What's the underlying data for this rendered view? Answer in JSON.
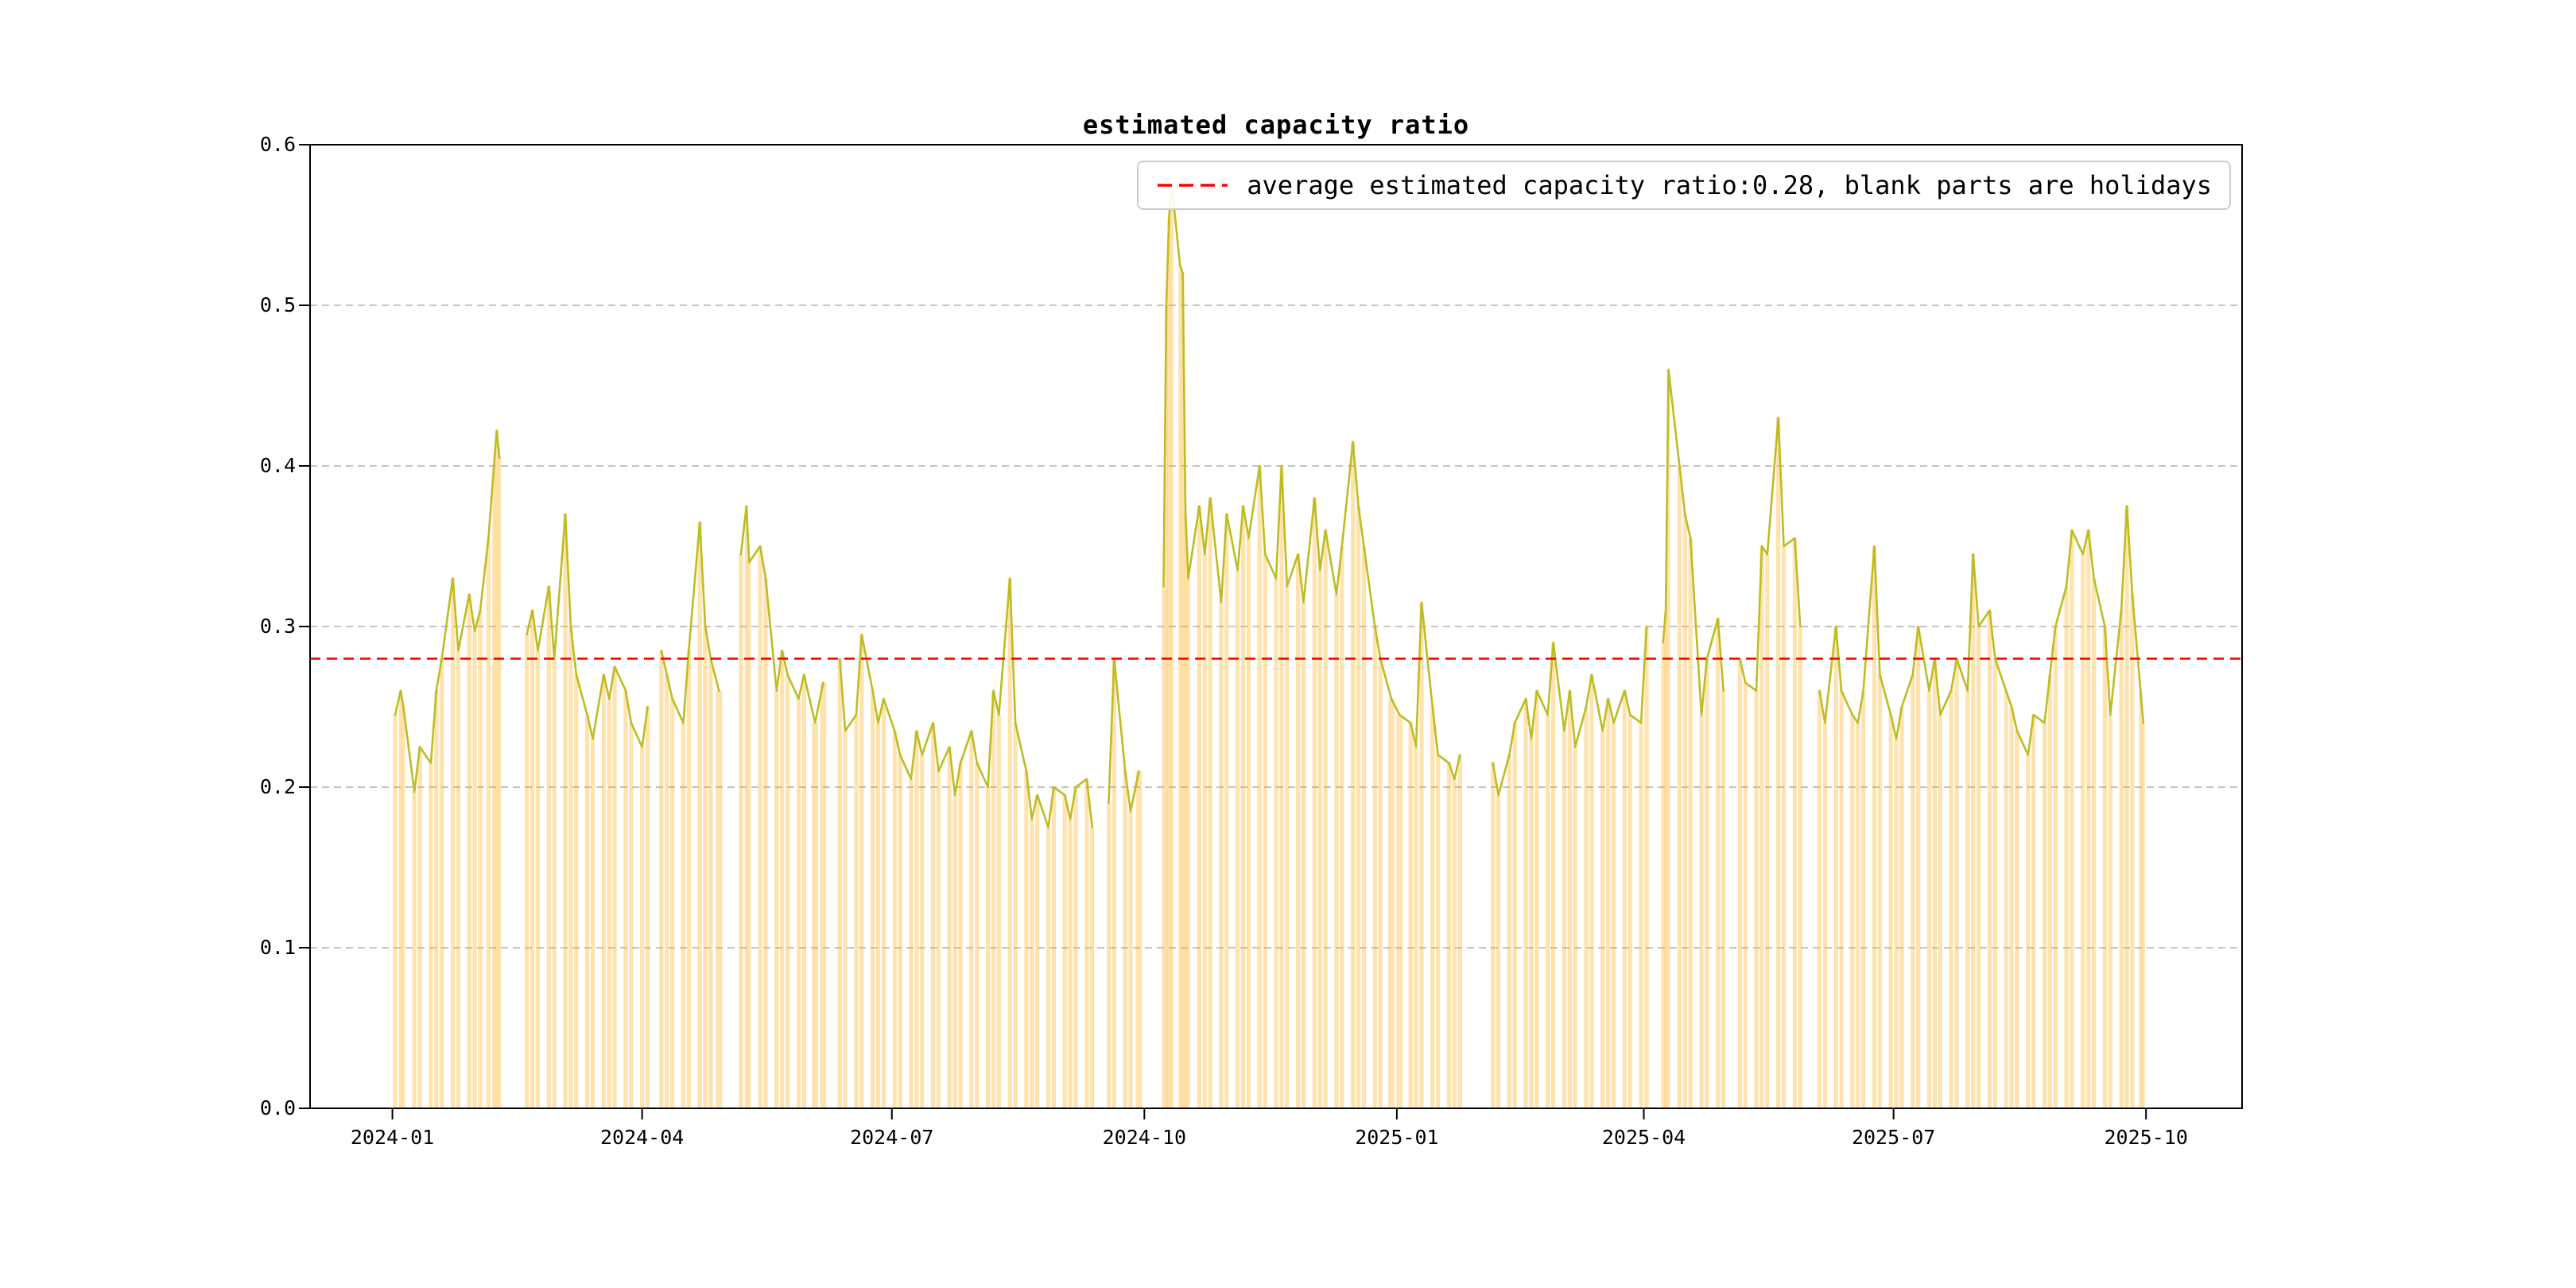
{
  "figure": {
    "title": "estimated capacity ratio"
  },
  "chart_data": {
    "type": "line",
    "title": "estimated capacity ratio",
    "ylim": [
      0.0,
      0.6
    ],
    "ytick_labels": [
      "0.0",
      "0.1",
      "0.2",
      "0.3",
      "0.4",
      "0.5",
      "0.6"
    ],
    "xlim": [
      "2023-12-02",
      "2025-11-05"
    ],
    "xticks": [
      "2024-01-01",
      "2024-04-01",
      "2024-07-01",
      "2024-10-01",
      "2025-01-01",
      "2025-04-01",
      "2025-07-01",
      "2025-10-01"
    ],
    "xtick_labels": [
      "2024-01",
      "2024-04",
      "2024-07",
      "2024-10",
      "2025-01",
      "2025-04",
      "2025-07",
      "2025-10"
    ],
    "grid": true,
    "average_line": {
      "value": 0.28,
      "color": "#ff0000",
      "style": "dashed"
    },
    "legend": {
      "position": "upper right",
      "entries": [
        {
          "label": "average estimated capacity ratio:0.28, blank parts are holidays",
          "color": "#ff0000",
          "style": "dashed"
        }
      ]
    },
    "colors": {
      "line": "#bcbd22",
      "bar": "#ffa500",
      "bar_alpha": 0.32,
      "grid": "#b0b0b0",
      "average": "#ff0000",
      "spine": "#000000"
    },
    "notes": "blank parts are holidays",
    "series": [
      {
        "name": "estimated capacity ratio",
        "render": "line-with-bars",
        "points": [
          [
            "2024-01-02",
            0.245
          ],
          [
            "2024-01-04",
            0.26
          ],
          [
            "2024-01-05",
            0.25
          ],
          [
            "2024-01-09",
            0.197
          ],
          [
            "2024-01-11",
            0.225
          ],
          [
            "2024-01-15",
            0.215
          ],
          [
            "2024-01-17",
            0.26
          ],
          [
            "2024-01-19",
            0.28
          ],
          [
            "2024-01-23",
            0.33
          ],
          [
            "2024-01-25",
            0.285
          ],
          [
            "2024-01-29",
            0.32
          ],
          [
            "2024-01-31",
            0.297
          ],
          [
            "2024-02-02",
            0.31
          ],
          [
            "2024-02-05",
            0.355
          ],
          [
            "2024-02-07",
            0.4
          ],
          [
            "2024-02-08",
            0.422
          ],
          [
            "2024-02-09",
            0.405
          ],
          [
            "2024-02-13",
            null
          ],
          [
            "2024-02-19",
            0.295
          ],
          [
            "2024-02-21",
            0.31
          ],
          [
            "2024-02-23",
            0.285
          ],
          [
            "2024-02-27",
            0.325
          ],
          [
            "2024-02-29",
            0.28
          ],
          [
            "2024-03-04",
            0.37
          ],
          [
            "2024-03-06",
            0.3
          ],
          [
            "2024-03-08",
            0.27
          ],
          [
            "2024-03-12",
            0.245
          ],
          [
            "2024-03-14",
            0.23
          ],
          [
            "2024-03-18",
            0.27
          ],
          [
            "2024-03-20",
            0.255
          ],
          [
            "2024-03-22",
            0.275
          ],
          [
            "2024-03-26",
            0.26
          ],
          [
            "2024-03-28",
            0.24
          ],
          [
            "2024-04-01",
            0.225
          ],
          [
            "2024-04-03",
            0.25
          ],
          [
            "2024-04-05",
            null
          ],
          [
            "2024-04-08",
            0.285
          ],
          [
            "2024-04-10",
            0.27
          ],
          [
            "2024-04-12",
            0.255
          ],
          [
            "2024-04-16",
            0.24
          ],
          [
            "2024-04-18",
            0.285
          ],
          [
            "2024-04-22",
            0.365
          ],
          [
            "2024-04-24",
            0.3
          ],
          [
            "2024-04-26",
            0.28
          ],
          [
            "2024-04-29",
            0.26
          ],
          [
            "2024-05-02",
            null
          ],
          [
            "2024-05-07",
            0.345
          ],
          [
            "2024-05-09",
            0.375
          ],
          [
            "2024-05-10",
            0.34
          ],
          [
            "2024-05-14",
            0.35
          ],
          [
            "2024-05-16",
            0.33
          ],
          [
            "2024-05-20",
            0.26
          ],
          [
            "2024-05-22",
            0.285
          ],
          [
            "2024-05-24",
            0.27
          ],
          [
            "2024-05-28",
            0.255
          ],
          [
            "2024-05-30",
            0.27
          ],
          [
            "2024-06-03",
            0.24
          ],
          [
            "2024-06-06",
            0.265
          ],
          [
            "2024-06-09",
            null
          ],
          [
            "2024-06-12",
            0.28
          ],
          [
            "2024-06-14",
            0.235
          ],
          [
            "2024-06-18",
            0.245
          ],
          [
            "2024-06-20",
            0.295
          ],
          [
            "2024-06-24",
            0.26
          ],
          [
            "2024-06-26",
            0.24
          ],
          [
            "2024-06-28",
            0.255
          ],
          [
            "2024-07-02",
            0.235
          ],
          [
            "2024-07-04",
            0.22
          ],
          [
            "2024-07-08",
            0.205
          ],
          [
            "2024-07-10",
            0.235
          ],
          [
            "2024-07-12",
            0.22
          ],
          [
            "2024-07-16",
            0.24
          ],
          [
            "2024-07-18",
            0.21
          ],
          [
            "2024-07-22",
            0.225
          ],
          [
            "2024-07-24",
            0.195
          ],
          [
            "2024-07-26",
            0.215
          ],
          [
            "2024-07-30",
            0.235
          ],
          [
            "2024-08-01",
            0.215
          ],
          [
            "2024-08-05",
            0.2
          ],
          [
            "2024-08-07",
            0.26
          ],
          [
            "2024-08-09",
            0.245
          ],
          [
            "2024-08-13",
            0.33
          ],
          [
            "2024-08-15",
            0.24
          ],
          [
            "2024-08-19",
            0.21
          ],
          [
            "2024-08-21",
            0.18
          ],
          [
            "2024-08-23",
            0.195
          ],
          [
            "2024-08-27",
            0.175
          ],
          [
            "2024-08-29",
            0.2
          ],
          [
            "2024-09-02",
            0.195
          ],
          [
            "2024-09-04",
            0.18
          ],
          [
            "2024-09-06",
            0.2
          ],
          [
            "2024-09-10",
            0.205
          ],
          [
            "2024-09-12",
            0.175
          ],
          [
            "2024-09-16",
            null
          ],
          [
            "2024-09-18",
            0.19
          ],
          [
            "2024-09-20",
            0.28
          ],
          [
            "2024-09-24",
            0.21
          ],
          [
            "2024-09-26",
            0.185
          ],
          [
            "2024-09-29",
            0.21
          ],
          [
            "2024-10-02",
            null
          ],
          [
            "2024-10-08",
            0.325
          ],
          [
            "2024-10-09",
            0.5
          ],
          [
            "2024-10-10",
            0.555
          ],
          [
            "2024-10-11",
            0.575
          ],
          [
            "2024-10-14",
            0.525
          ],
          [
            "2024-10-15",
            0.52
          ],
          [
            "2024-10-16",
            0.37
          ],
          [
            "2024-10-17",
            0.33
          ],
          [
            "2024-10-21",
            0.375
          ],
          [
            "2024-10-23",
            0.345
          ],
          [
            "2024-10-25",
            0.38
          ],
          [
            "2024-10-29",
            0.315
          ],
          [
            "2024-10-31",
            0.37
          ],
          [
            "2024-11-04",
            0.335
          ],
          [
            "2024-11-06",
            0.375
          ],
          [
            "2024-11-08",
            0.355
          ],
          [
            "2024-11-12",
            0.4
          ],
          [
            "2024-11-14",
            0.345
          ],
          [
            "2024-11-18",
            0.33
          ],
          [
            "2024-11-20",
            0.4
          ],
          [
            "2024-11-22",
            0.325
          ],
          [
            "2024-11-26",
            0.345
          ],
          [
            "2024-11-28",
            0.315
          ],
          [
            "2024-12-02",
            0.38
          ],
          [
            "2024-12-04",
            0.335
          ],
          [
            "2024-12-06",
            0.36
          ],
          [
            "2024-12-10",
            0.32
          ],
          [
            "2024-12-12",
            0.35
          ],
          [
            "2024-12-16",
            0.415
          ],
          [
            "2024-12-18",
            0.375
          ],
          [
            "2024-12-20",
            0.35
          ],
          [
            "2024-12-24",
            0.3
          ],
          [
            "2024-12-26",
            0.28
          ],
          [
            "2024-12-30",
            0.255
          ],
          [
            "2025-01-02",
            0.245
          ],
          [
            "2025-01-06",
            0.24
          ],
          [
            "2025-01-08",
            0.225
          ],
          [
            "2025-01-10",
            0.315
          ],
          [
            "2025-01-14",
            0.25
          ],
          [
            "2025-01-16",
            0.22
          ],
          [
            "2025-01-20",
            0.215
          ],
          [
            "2025-01-22",
            0.205
          ],
          [
            "2025-01-24",
            0.22
          ],
          [
            "2025-01-28",
            null
          ],
          [
            "2025-02-05",
            0.215
          ],
          [
            "2025-02-07",
            0.195
          ],
          [
            "2025-02-11",
            0.22
          ],
          [
            "2025-02-13",
            0.24
          ],
          [
            "2025-02-17",
            0.255
          ],
          [
            "2025-02-19",
            0.23
          ],
          [
            "2025-02-21",
            0.26
          ],
          [
            "2025-02-25",
            0.245
          ],
          [
            "2025-02-27",
            0.29
          ],
          [
            "2025-03-03",
            0.235
          ],
          [
            "2025-03-05",
            0.26
          ],
          [
            "2025-03-07",
            0.225
          ],
          [
            "2025-03-11",
            0.25
          ],
          [
            "2025-03-13",
            0.27
          ],
          [
            "2025-03-17",
            0.235
          ],
          [
            "2025-03-19",
            0.255
          ],
          [
            "2025-03-21",
            0.24
          ],
          [
            "2025-03-25",
            0.26
          ],
          [
            "2025-03-27",
            0.245
          ],
          [
            "2025-03-31",
            0.24
          ],
          [
            "2025-04-02",
            0.3
          ],
          [
            "2025-04-04",
            null
          ],
          [
            "2025-04-08",
            0.29
          ],
          [
            "2025-04-09",
            0.31
          ],
          [
            "2025-04-10",
            0.46
          ],
          [
            "2025-04-14",
            0.4
          ],
          [
            "2025-04-16",
            0.37
          ],
          [
            "2025-04-18",
            0.355
          ],
          [
            "2025-04-22",
            0.245
          ],
          [
            "2025-04-24",
            0.28
          ],
          [
            "2025-04-28",
            0.305
          ],
          [
            "2025-04-30",
            0.26
          ],
          [
            "2025-05-02",
            null
          ],
          [
            "2025-05-06",
            0.28
          ],
          [
            "2025-05-08",
            0.265
          ],
          [
            "2025-05-12",
            0.26
          ],
          [
            "2025-05-14",
            0.35
          ],
          [
            "2025-05-16",
            0.345
          ],
          [
            "2025-05-20",
            0.43
          ],
          [
            "2025-05-22",
            0.35
          ],
          [
            "2025-05-26",
            0.355
          ],
          [
            "2025-05-28",
            0.3
          ],
          [
            "2025-06-01",
            null
          ],
          [
            "2025-06-04",
            0.26
          ],
          [
            "2025-06-06",
            0.24
          ],
          [
            "2025-06-10",
            0.3
          ],
          [
            "2025-06-12",
            0.26
          ],
          [
            "2025-06-16",
            0.245
          ],
          [
            "2025-06-18",
            0.24
          ],
          [
            "2025-06-20",
            0.26
          ],
          [
            "2025-06-24",
            0.35
          ],
          [
            "2025-06-26",
            0.27
          ],
          [
            "2025-06-30",
            0.245
          ],
          [
            "2025-07-02",
            0.23
          ],
          [
            "2025-07-04",
            0.25
          ],
          [
            "2025-07-08",
            0.27
          ],
          [
            "2025-07-10",
            0.3
          ],
          [
            "2025-07-14",
            0.26
          ],
          [
            "2025-07-16",
            0.28
          ],
          [
            "2025-07-18",
            0.245
          ],
          [
            "2025-07-22",
            0.26
          ],
          [
            "2025-07-24",
            0.28
          ],
          [
            "2025-07-28",
            0.26
          ],
          [
            "2025-07-30",
            0.345
          ],
          [
            "2025-08-01",
            0.3
          ],
          [
            "2025-08-05",
            0.31
          ],
          [
            "2025-08-07",
            0.28
          ],
          [
            "2025-08-11",
            0.26
          ],
          [
            "2025-08-13",
            0.25
          ],
          [
            "2025-08-15",
            0.235
          ],
          [
            "2025-08-19",
            0.22
          ],
          [
            "2025-08-21",
            0.245
          ],
          [
            "2025-08-25",
            0.24
          ],
          [
            "2025-08-27",
            0.27
          ],
          [
            "2025-08-29",
            0.3
          ],
          [
            "2025-09-02",
            0.325
          ],
          [
            "2025-09-04",
            0.36
          ],
          [
            "2025-09-08",
            0.345
          ],
          [
            "2025-09-10",
            0.36
          ],
          [
            "2025-09-12",
            0.33
          ],
          [
            "2025-09-16",
            0.3
          ],
          [
            "2025-09-18",
            0.245
          ],
          [
            "2025-09-22",
            0.31
          ],
          [
            "2025-09-24",
            0.375
          ],
          [
            "2025-09-26",
            0.32
          ],
          [
            "2025-09-29",
            0.26
          ],
          [
            "2025-09-30",
            0.24
          ]
        ]
      }
    ]
  }
}
